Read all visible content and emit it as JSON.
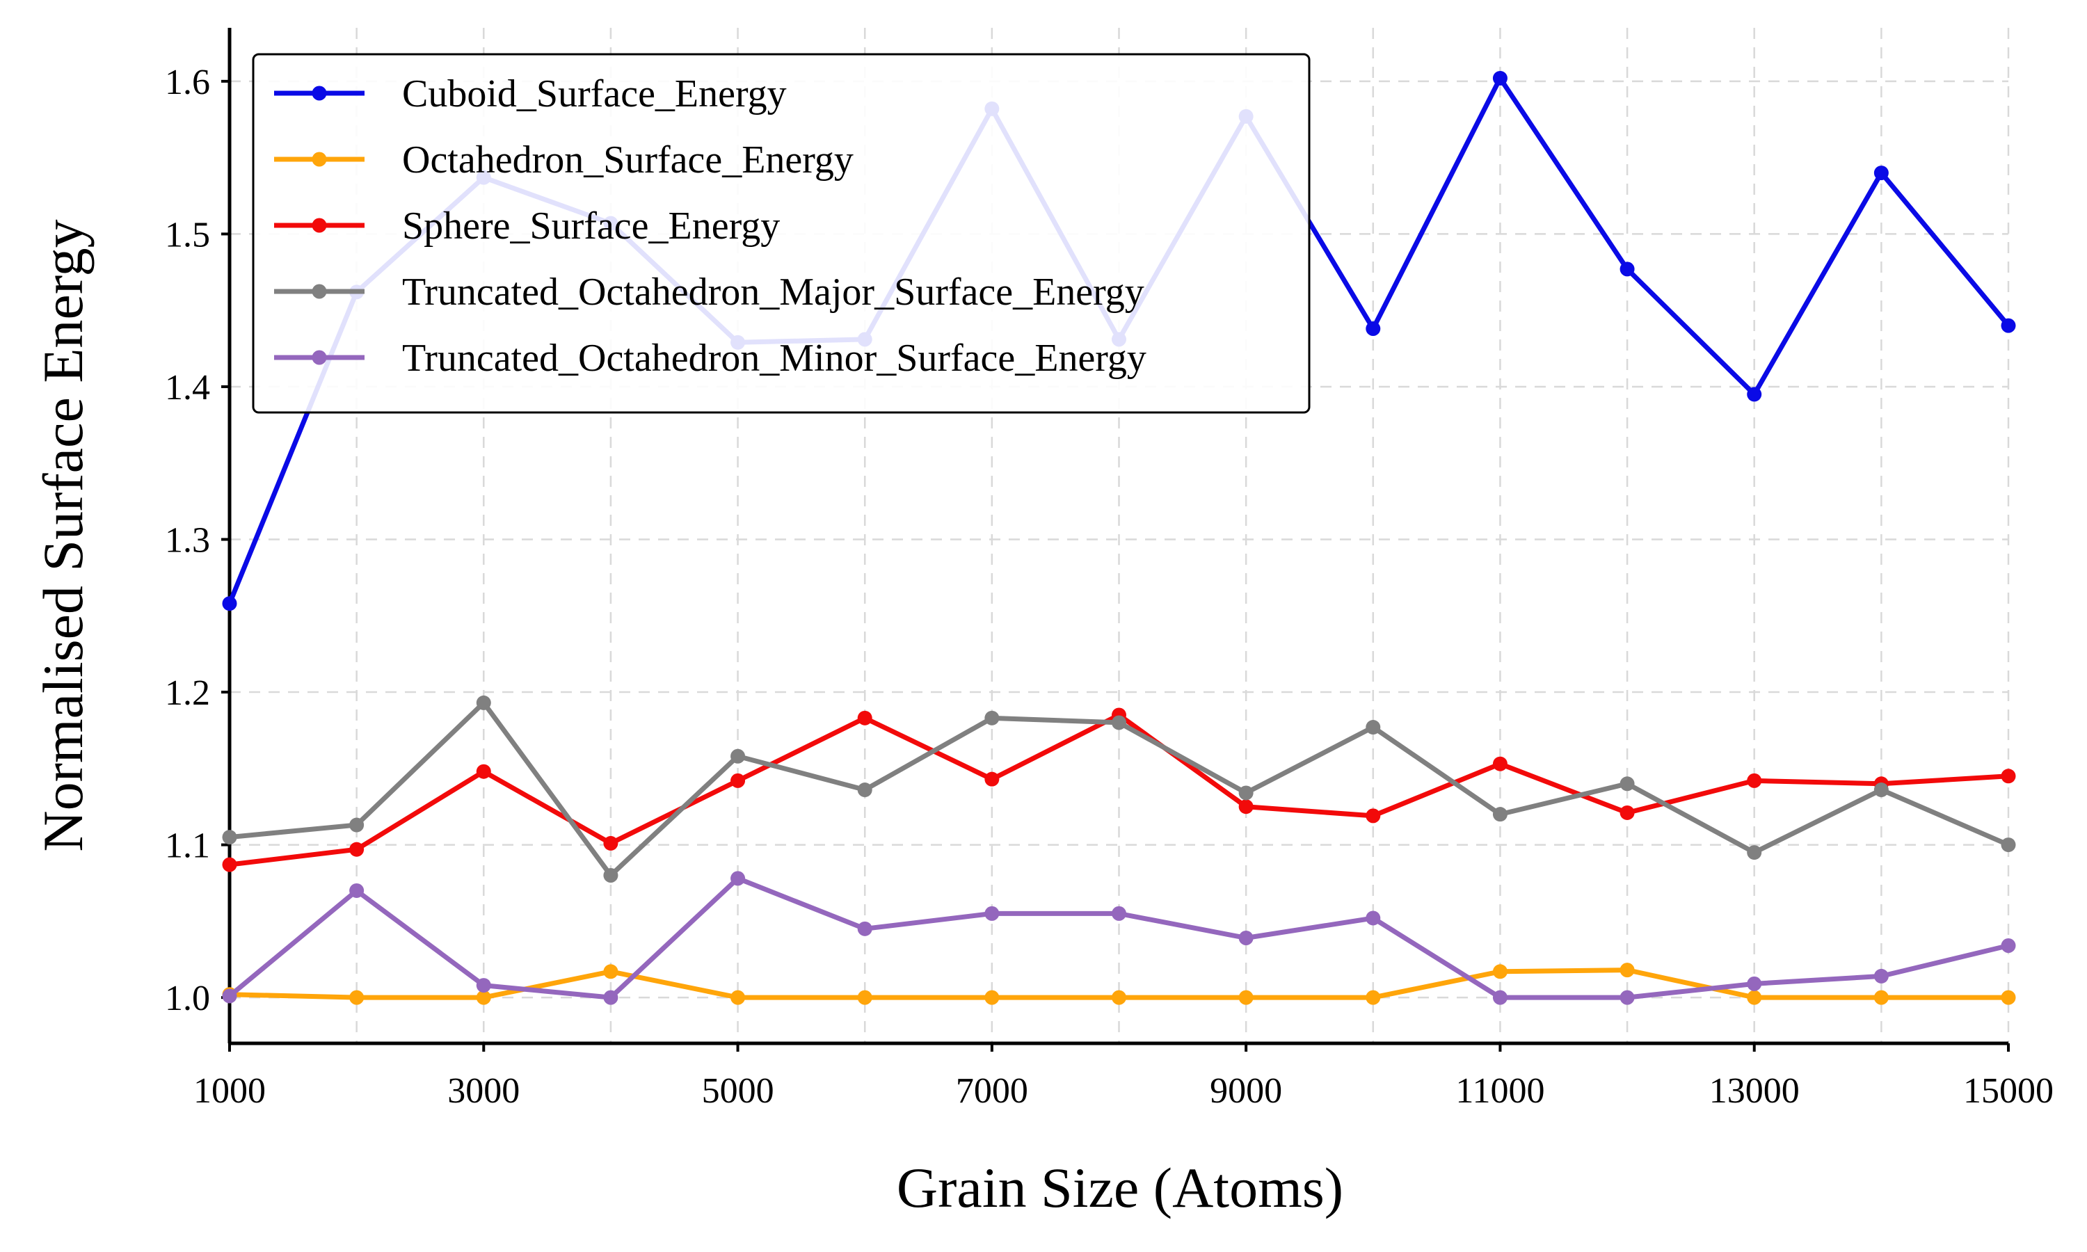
{
  "chart_data": {
    "type": "line",
    "title": "",
    "xlabel": "Grain Size (Atoms)",
    "ylabel": "Normalised Surface Energy",
    "xlim": [
      1000,
      15000
    ],
    "ylim": [
      0.97,
      1.635
    ],
    "x_ticks": [
      1000,
      3000,
      5000,
      7000,
      9000,
      11000,
      13000,
      15000
    ],
    "y_ticks": [
      1.0,
      1.1,
      1.2,
      1.3,
      1.4,
      1.5,
      1.6
    ],
    "grid": true,
    "legend_position": "top-left",
    "x": [
      1000,
      2000,
      3000,
      4000,
      5000,
      6000,
      7000,
      8000,
      9000,
      10000,
      11000,
      12000,
      13000,
      14000,
      15000
    ],
    "series": [
      {
        "name": "Cuboid_Surface_Energy",
        "color": "#0a0ae6",
        "values": [
          1.258,
          1.462,
          1.537,
          1.507,
          1.429,
          1.431,
          1.582,
          1.431,
          1.577,
          1.438,
          1.602,
          1.477,
          1.395,
          1.54,
          1.44
        ]
      },
      {
        "name": "Octahedron_Surface_Energy",
        "color": "#ffa50a",
        "values": [
          1.002,
          1.0,
          1.0,
          1.017,
          1.0,
          1.0,
          1.0,
          1.0,
          1.0,
          1.0,
          1.017,
          1.018,
          1.0,
          1.0,
          1.0
        ]
      },
      {
        "name": "Sphere_Surface_Energy",
        "color": "#f20a0a",
        "values": [
          1.087,
          1.097,
          1.148,
          1.101,
          1.142,
          1.183,
          1.143,
          1.185,
          1.125,
          1.119,
          1.153,
          1.121,
          1.142,
          1.14,
          1.145
        ]
      },
      {
        "name": "Truncated_Octahedron_Major_Surface_Energy",
        "color": "#808080",
        "values": [
          1.105,
          1.113,
          1.193,
          1.08,
          1.158,
          1.136,
          1.183,
          1.18,
          1.134,
          1.177,
          1.12,
          1.14,
          1.095,
          1.136,
          1.1
        ]
      },
      {
        "name": "Truncated_Octahedron_Minor_Surface_Energy",
        "color": "#9467bd",
        "values": [
          1.001,
          1.07,
          1.008,
          1.0,
          1.078,
          1.045,
          1.055,
          1.055,
          1.039,
          1.052,
          1.0,
          1.0,
          1.009,
          1.014,
          1.034
        ]
      }
    ]
  }
}
